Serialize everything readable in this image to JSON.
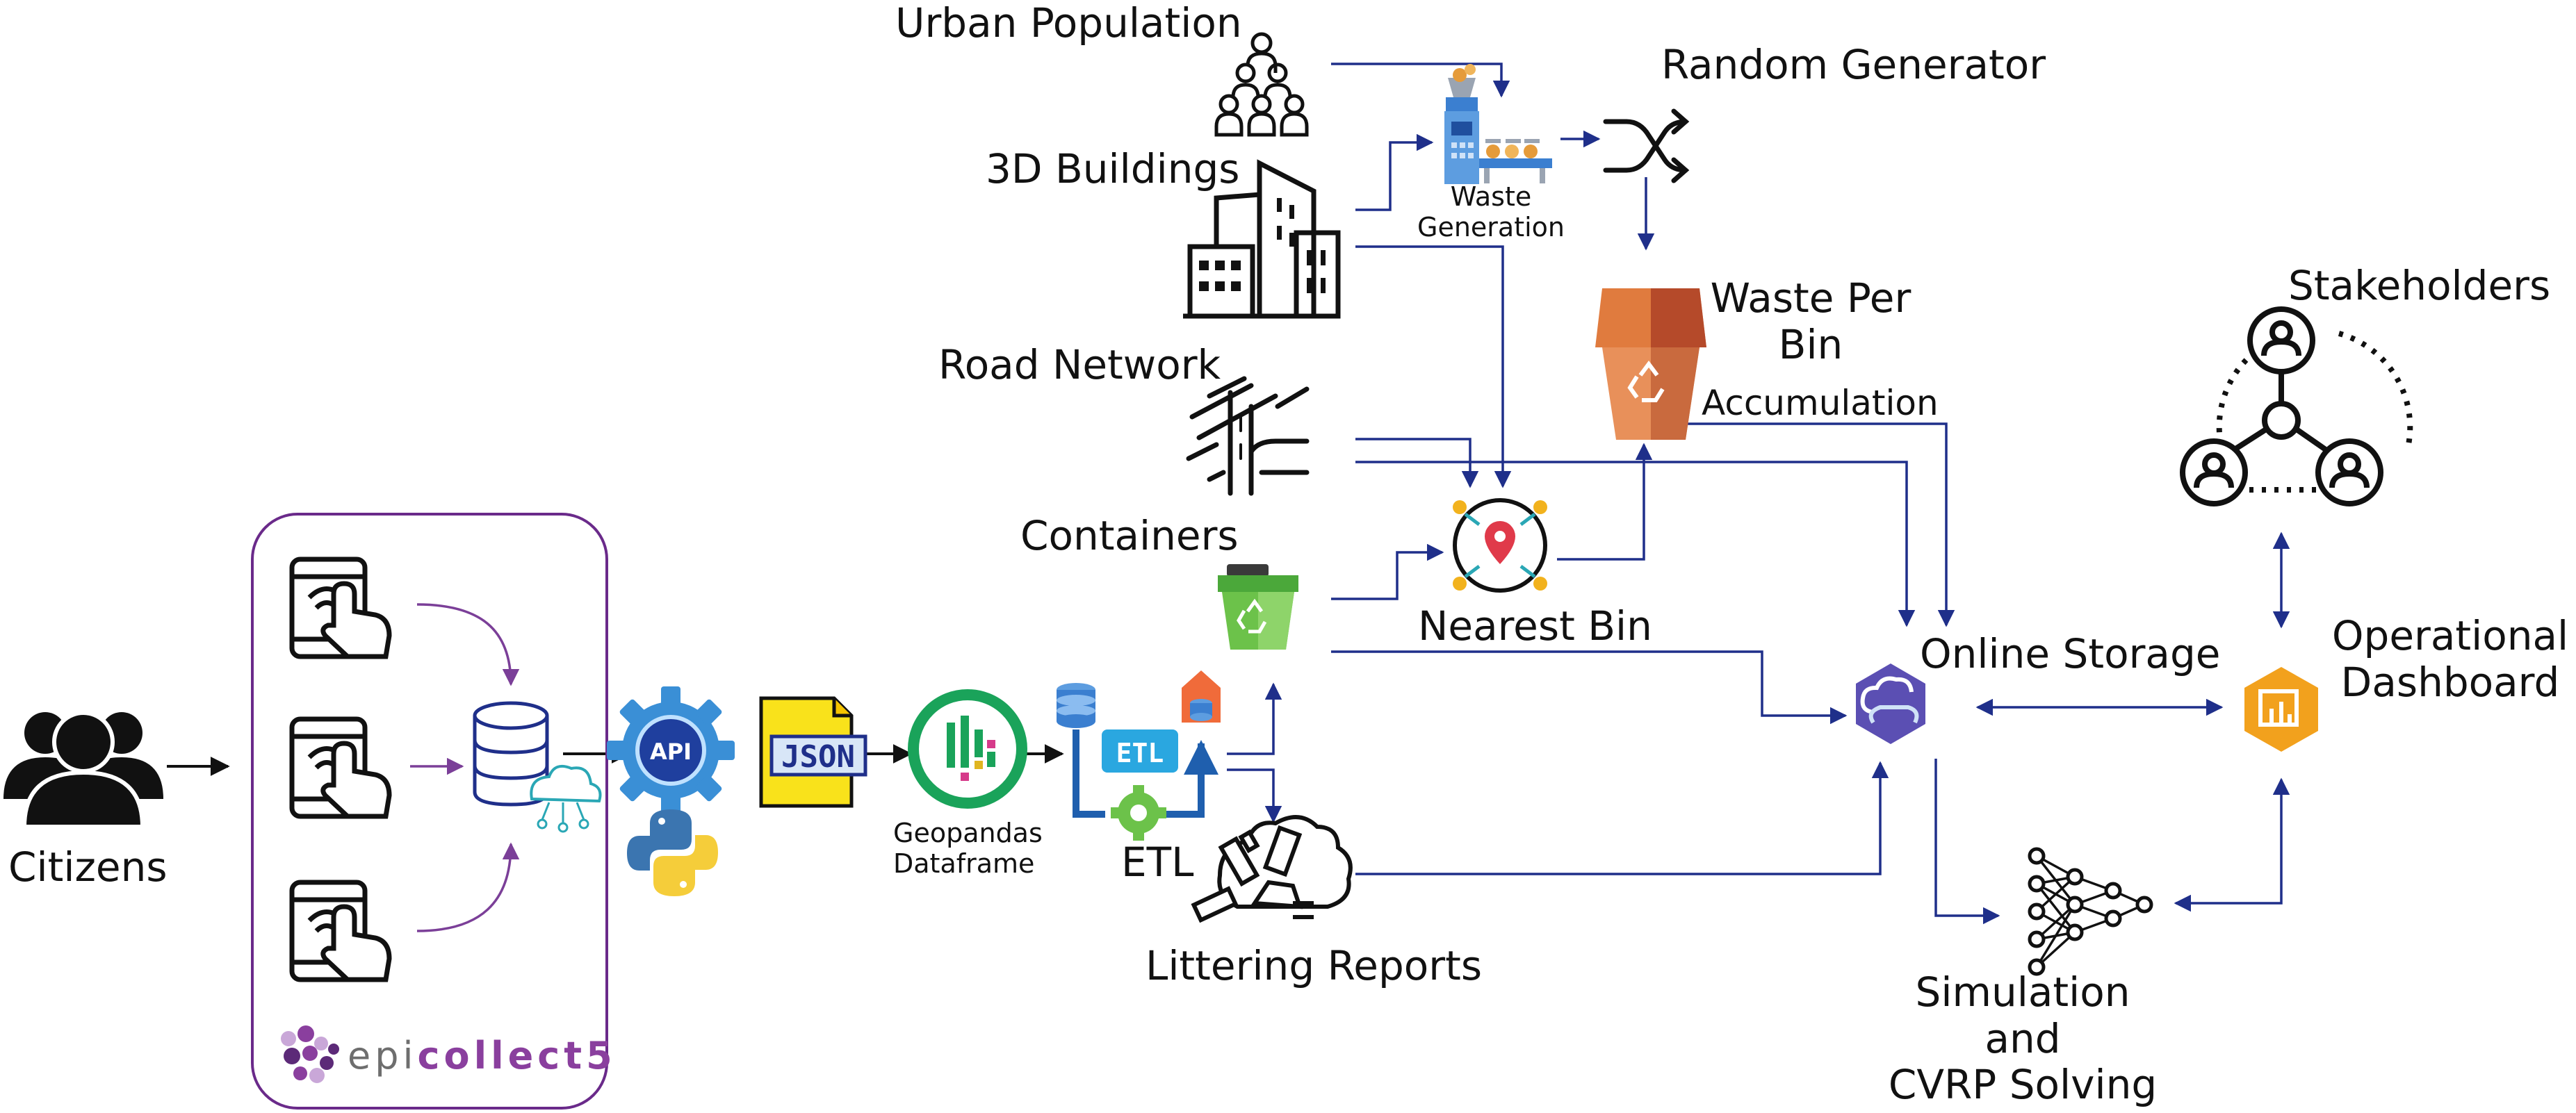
{
  "labels": {
    "citizens": "Citizens",
    "urban_population": "Urban Population",
    "buildings_3d": "3D Buildings",
    "road_network": "Road Network",
    "containers": "Containers",
    "random_generator": "Random Generator",
    "waste_generation": "Waste\nGeneration",
    "waste_per_bin": "Waste Per\nBin",
    "accumulation": "Accumulation",
    "nearest_bin": "Nearest Bin",
    "geopandas": "Geopandas\nDataframe",
    "etl": "ETL",
    "etl_badge": "ETL",
    "json_badge": "JSON",
    "api_badge": "API",
    "littering_reports": "Littering Reports",
    "online_storage": "Online Storage",
    "operational_dashboard": "Operational\nDashboard",
    "stakeholders": "Stakeholders",
    "simulation": "Simulation and\nCVRP Solving"
  },
  "epicollect": {
    "prefix": "epi",
    "suffix": "collect5"
  },
  "colors": {
    "arrow": "#1f2f8a",
    "purple": "#7b3f98",
    "black": "#111111",
    "blue": "#1f5fae",
    "bin_orange": "#d9783e",
    "bin_green": "#6cc24a",
    "json_yellow": "#f9e21b",
    "storage": "#5b4fb3",
    "dashboard": "#f2a11d",
    "geopandas_green": "#1aa35a"
  }
}
